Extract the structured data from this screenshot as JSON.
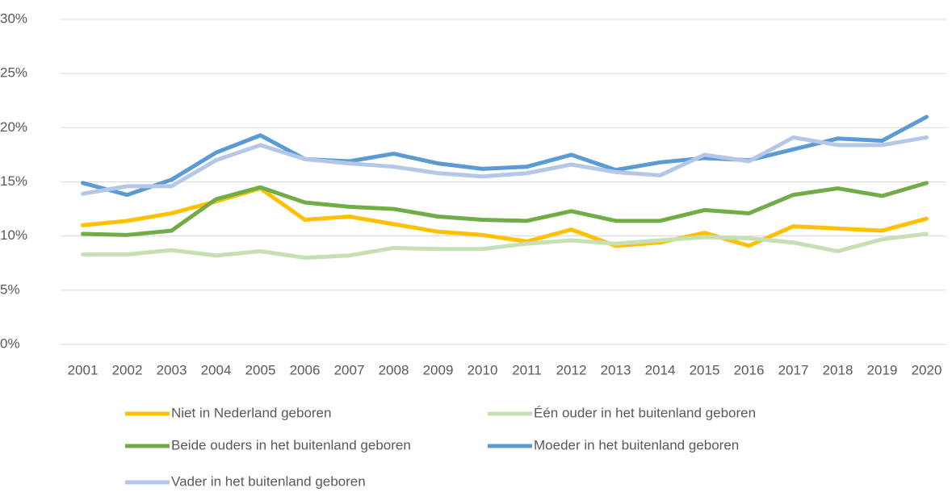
{
  "chart_data": {
    "type": "line",
    "categories": [
      "2001",
      "2002",
      "2003",
      "2004",
      "2005",
      "2006",
      "2007",
      "2008",
      "2009",
      "2010",
      "2011",
      "2012",
      "2013",
      "2014",
      "2015",
      "2016",
      "2017",
      "2018",
      "2019",
      "2020"
    ],
    "series": [
      {
        "name": "Niet in Nederland geboren",
        "color": "#ffc000",
        "values": [
          11.0,
          11.4,
          12.1,
          13.2,
          14.4,
          11.5,
          11.8,
          11.1,
          10.4,
          10.1,
          9.5,
          10.6,
          9.1,
          9.4,
          10.3,
          9.1,
          10.9,
          10.7,
          10.5,
          11.6
        ]
      },
      {
        "name": "Één ouder in het buitenland geboren",
        "color": "#c5e0b4",
        "values": [
          8.3,
          8.3,
          8.7,
          8.2,
          8.6,
          8.0,
          8.2,
          8.9,
          8.8,
          8.8,
          9.3,
          9.6,
          9.3,
          9.6,
          9.9,
          9.8,
          9.4,
          8.6,
          9.7,
          10.2
        ]
      },
      {
        "name": "Beide ouders in het buitenland geboren",
        "color": "#70ad47",
        "values": [
          10.2,
          10.1,
          10.5,
          13.4,
          14.5,
          13.1,
          12.7,
          12.5,
          11.8,
          11.5,
          11.4,
          12.3,
          11.4,
          11.4,
          12.4,
          12.1,
          13.8,
          14.4,
          13.7,
          14.9
        ]
      },
      {
        "name": "Moeder in het buitenland geboren",
        "color": "#5b9bd5",
        "values": [
          14.9,
          13.8,
          15.2,
          17.7,
          19.3,
          17.1,
          16.9,
          17.6,
          16.7,
          16.2,
          16.4,
          17.5,
          16.1,
          16.8,
          17.2,
          17.0,
          18.0,
          19.0,
          18.8,
          21.0
        ]
      },
      {
        "name": "Vader in het buitenland geboren",
        "color": "#b4c7e7",
        "values": [
          13.9,
          14.6,
          14.6,
          17.0,
          18.4,
          17.1,
          16.7,
          16.4,
          15.8,
          15.5,
          15.8,
          16.6,
          15.9,
          15.6,
          17.5,
          16.9,
          19.1,
          18.4,
          18.4,
          19.1
        ]
      }
    ],
    "ylim": [
      0,
      30
    ],
    "yticks": [
      {
        "value": 0,
        "label": "0%"
      },
      {
        "value": 5,
        "label": "5%"
      },
      {
        "value": 10,
        "label": "10%"
      },
      {
        "value": 15,
        "label": "15%"
      },
      {
        "value": 20,
        "label": "20%"
      },
      {
        "value": 25,
        "label": "25%"
      },
      {
        "value": 30,
        "label": "30%"
      }
    ],
    "grid": true
  }
}
